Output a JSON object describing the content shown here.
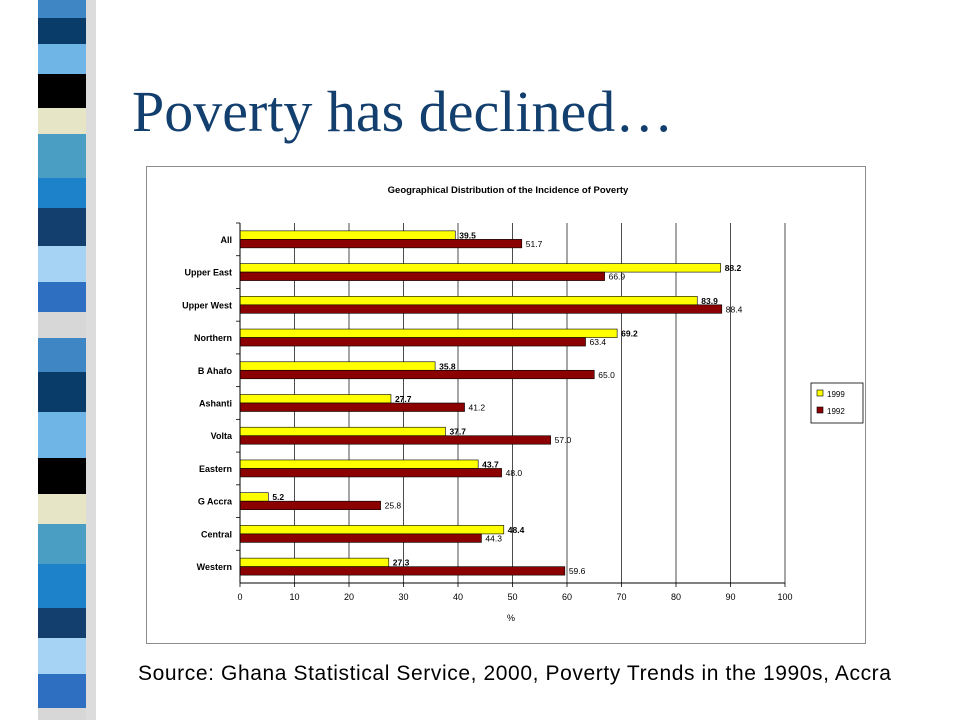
{
  "slide": {
    "title": "Poverty has declined…",
    "source": "Source: Ghana Statistical Service, 2000, Poverty Trends in the 1990s, Accra"
  },
  "stripe_colors": [
    "#3e87c4",
    "#0a3c6a",
    "#6fb6e6",
    "#000000",
    "#e6e6c6",
    "#4a9ec4",
    "#1d82c9",
    "#123f6e",
    "#a6d3f3",
    "#2f6fc1",
    "#d7d7d7"
  ],
  "chart_data": {
    "type": "bar",
    "orientation": "horizontal",
    "title": "Geographical Distribution of the Incidence of Poverty",
    "xlabel": "%",
    "ylabel": "",
    "xlim": [
      0,
      100
    ],
    "xticks": [
      0,
      10,
      20,
      30,
      40,
      50,
      60,
      70,
      80,
      90,
      100
    ],
    "grid": true,
    "legend_position": "right",
    "categories": [
      "All",
      "Upper East",
      "Upper West",
      "Northern",
      "B Ahafo",
      "Ashanti",
      "Volta",
      "Eastern",
      "G Accra",
      "Central",
      "Western"
    ],
    "series": [
      {
        "name": "1999",
        "color": "#ffff00",
        "values": [
          39.5,
          88.2,
          83.9,
          69.2,
          35.8,
          27.7,
          37.7,
          43.7,
          5.2,
          48.4,
          27.3
        ]
      },
      {
        "name": "1992",
        "color": "#8b0000",
        "values": [
          51.7,
          66.9,
          88.4,
          63.4,
          65.0,
          41.2,
          57.0,
          48.0,
          25.8,
          44.3,
          59.6
        ]
      }
    ],
    "value_labels": [
      [
        "39.5",
        "88.2",
        "83.9",
        "69.2",
        "35.8",
        "27.7",
        "37.7",
        "43.7",
        "5.2",
        "48.4",
        "27.3"
      ],
      [
        "51.7",
        "66.9",
        "88.4",
        "63.4",
        "65.0",
        "41.2",
        "57.0",
        "48.0",
        "25.8",
        "44.3",
        "59.6"
      ]
    ]
  }
}
